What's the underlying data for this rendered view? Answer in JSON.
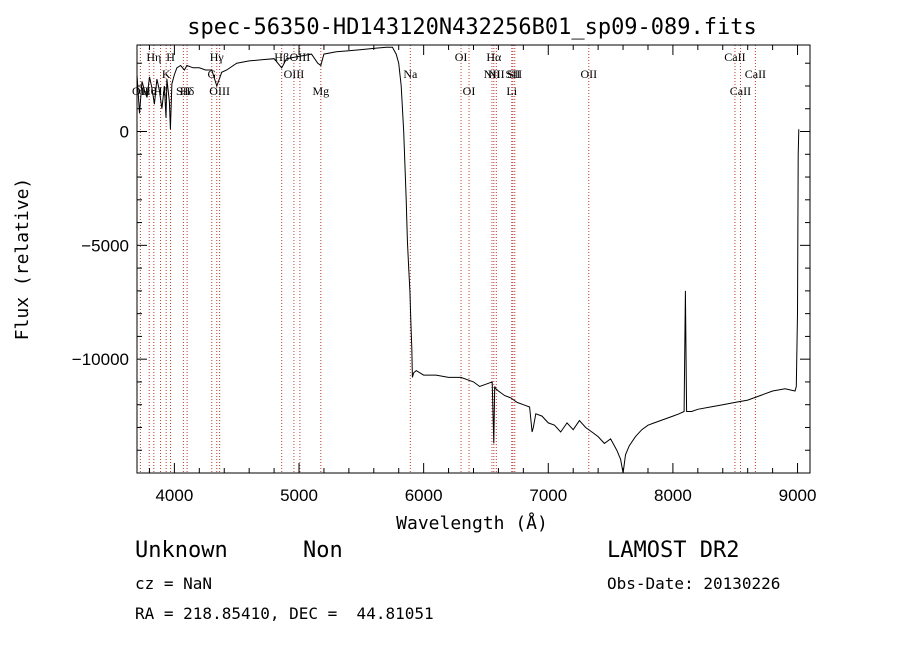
{
  "chart_data": {
    "type": "line",
    "title": "spec-56350-HD143120N432256B01_sp09-089.fits",
    "xlabel": "Wavelength (Å)",
    "ylabel": "Flux (relative)",
    "xlim": [
      3700,
      9100
    ],
    "ylim": [
      -15000,
      3800
    ],
    "xticks": [
      4000,
      5000,
      6000,
      7000,
      8000,
      9000
    ],
    "yticks": [
      0,
      -5000,
      -10000
    ],
    "grid": false,
    "series": [
      {
        "x": [
          3700,
          3720,
          3740,
          3760,
          3780,
          3800,
          3820,
          3840,
          3860,
          3880,
          3900,
          3920,
          3933,
          3940,
          3960,
          3968,
          3980,
          4000,
          4020,
          4050,
          4080,
          4100,
          4150,
          4200,
          4250,
          4300,
          4340,
          4380,
          4420,
          4500,
          4600,
          4700,
          4800,
          4861,
          4900,
          5000,
          5100,
          5150,
          5175,
          5200,
          5300,
          5400,
          5500,
          5600,
          5700,
          5750,
          5760,
          5780,
          5800,
          5820,
          5840,
          5860,
          5870,
          5880,
          5890,
          5895,
          5900,
          5905,
          5910,
          5920,
          5940,
          6000,
          6100,
          6200,
          6300,
          6400,
          6450,
          6500,
          6550,
          6563,
          6570,
          6580,
          6600,
          6650,
          6700,
          6750,
          6800,
          6850,
          6870,
          6880,
          6900,
          6950,
          7000,
          7050,
          7100,
          7150,
          7200,
          7250,
          7300,
          7350,
          7400,
          7450,
          7500,
          7550,
          7580,
          7600,
          7620,
          7650,
          7700,
          7750,
          7800,
          7850,
          7900,
          7950,
          8000,
          8050,
          8090,
          8100,
          8110,
          8150,
          8200,
          8300,
          8400,
          8500,
          8600,
          8700,
          8800,
          8900,
          8980,
          8990,
          9000,
          9005,
          9010
        ],
        "y": [
          2500,
          800,
          2200,
          1800,
          1500,
          2400,
          1900,
          1200,
          2300,
          1800,
          1000,
          2000,
          600,
          2300,
          1300,
          100,
          2100,
          2500,
          2800,
          2900,
          2700,
          2900,
          2800,
          2800,
          2700,
          2700,
          2000,
          2600,
          2700,
          3000,
          3100,
          3150,
          3200,
          2800,
          3200,
          3300,
          3400,
          3000,
          2900,
          3400,
          3500,
          3550,
          3600,
          3650,
          3700,
          3700,
          3600,
          3400,
          3000,
          2000,
          0,
          -3000,
          -4800,
          -6000,
          -7000,
          -8000,
          -8800,
          -9500,
          -10800,
          -10600,
          -10500,
          -10700,
          -10700,
          -10800,
          -10800,
          -11000,
          -11200,
          -11100,
          -11000,
          -13700,
          -11200,
          -11300,
          -11400,
          -11600,
          -11700,
          -11900,
          -12000,
          -12100,
          -13200,
          -13000,
          -12400,
          -12500,
          -12800,
          -12900,
          -13200,
          -12800,
          -13100,
          -12700,
          -13000,
          -13200,
          -13400,
          -13700,
          -13500,
          -14000,
          -14400,
          -15000,
          -14200,
          -13800,
          -13400,
          -13100,
          -12900,
          -12800,
          -12700,
          -12600,
          -12500,
          -12400,
          -12300,
          -7000,
          -12300,
          -12300,
          -12200,
          -12100,
          -12000,
          -11900,
          -11800,
          -11600,
          -11400,
          -11300,
          -11400,
          -11200,
          -8000,
          -1000,
          100
        ]
      }
    ],
    "lines": [
      {
        "wave": 3727,
        "label": "OII",
        "row": 3
      },
      {
        "wave": 3798,
        "label": "Hθ",
        "row": 3
      },
      {
        "wave": 3835,
        "label": "Hη",
        "row": 1
      },
      {
        "wave": 3889,
        "label": "Hζ",
        "row": 3
      },
      {
        "wave": 3934,
        "label": "K",
        "row": 2
      },
      {
        "wave": 3969,
        "label": "H",
        "row": 1
      },
      {
        "wave": 4072,
        "label": "SII",
        "row": 3
      },
      {
        "wave": 4102,
        "label": "Hδ",
        "row": 3
      },
      {
        "wave": 4300,
        "label": "G",
        "row": 2
      },
      {
        "wave": 4340,
        "label": "Hγ",
        "row": 1
      },
      {
        "wave": 4363,
        "label": "OIII",
        "row": 3
      },
      {
        "wave": 4861,
        "label": "Hβ",
        "row": 1
      },
      {
        "wave": 4959,
        "label": "OIII",
        "row": 2
      },
      {
        "wave": 5007,
        "label": "OIII",
        "row": 1
      },
      {
        "wave": 5175,
        "label": "Mg",
        "row": 3
      },
      {
        "wave": 5893,
        "label": "Na",
        "row": 2
      },
      {
        "wave": 6300,
        "label": "OI",
        "row": 1
      },
      {
        "wave": 6364,
        "label": "OI",
        "row": 3
      },
      {
        "wave": 6548,
        "label": "NII",
        "row": 2
      },
      {
        "wave": 6563,
        "label": "Hα",
        "row": 1
      },
      {
        "wave": 6583,
        "label": "NII",
        "row": 2
      },
      {
        "wave": 6707,
        "label": "Li",
        "row": 3
      },
      {
        "wave": 6716,
        "label": "SII",
        "row": 2
      },
      {
        "wave": 6731,
        "label": "SII",
        "row": 2
      },
      {
        "wave": 7325,
        "label": "OII",
        "row": 2
      },
      {
        "wave": 8498,
        "label": "CaII",
        "row": 1
      },
      {
        "wave": 8542,
        "label": "CaII",
        "row": 3
      },
      {
        "wave": 8662,
        "label": "CaII",
        "row": 2
      }
    ]
  },
  "footer": {
    "class_text": "Unknown",
    "subclass_text": "Non",
    "survey_text": "LAMOST DR2",
    "cz_text": "cz = NaN",
    "obsdate_text": "Obs-Date: 20130226",
    "coord_text": "RA = 218.85410, DEC =  44.81051"
  }
}
